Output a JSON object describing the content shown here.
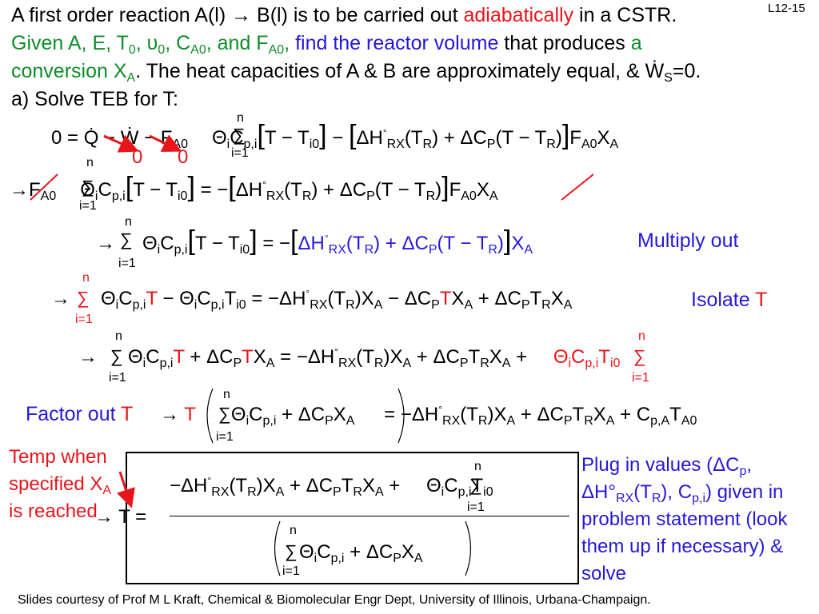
{
  "header": {
    "line1_a": "A first order reaction A(l) → B(l) is to be carried out ",
    "line1_red": "adiabatically",
    "line1_b": " in a CSTR.",
    "slide_id": "L12-15",
    "line2_a": "Given A, E, T",
    "line2_a_sub": "0",
    "line2_b": ", υ",
    "line2_b_sub": "0",
    "line2_c": ", C",
    "line2_c_sub": "A0",
    "line2_d": ", and F",
    "line2_d_sub": "A0",
    "line2_e": ", ",
    "line2_blue": "find the reactor volume",
    "line2_f": " that produces ",
    "line2_g": "a",
    "line3_a": "conversion X",
    "line3_a_sub": "A",
    "line3_b": ".  The heat capacities of A & B are approximately equal, & Ẇ",
    "line3_b_sub": "S",
    "line3_c": "=0.",
    "line4": "a) Solve TEB for T:"
  },
  "equations": {
    "eq1_lhs": "0 = Q̇ − Ẇ",
    "eq1_mid": " − F",
    "eq1_fa0": "A0",
    "eq1_term": "Θ",
    "eq1_i": "i",
    "eq1_cp": "C",
    "eq1_cp_sub": "p,i",
    "eq1_br": "T − T",
    "eq1_br_sub": "i0",
    "eq1_mid2": " − ",
    "eq1_dh": "ΔH",
    "eq1_deg": "°",
    "eq1_rx": "RX",
    "eq1_tr": "(T",
    "eq1_tr_sub": "R",
    "eq1_tr_end": ") + ΔC",
    "eq1_p": "P",
    "eq1_paren": "(T − T",
    "eq1_paren_sub": "R",
    "eq1_close": ")",
    "eq1_fa": "F",
    "eq1_fa_sub": "A0",
    "eq1_x": "X",
    "eq1_x_sub": "A",
    "zero_left": "0",
    "zero_right": "0",
    "sum_top": "n",
    "sum_bottom": "i=1",
    "step_multiply": "Multiply out",
    "step_isolate": "Isolate ",
    "step_isolate_t": "T",
    "step_factor": "Factor out ",
    "step_factor_t": "T",
    "result_note": "Temp when specified X",
    "result_note_sub": "A",
    "result_note_end": " is reached",
    "plug_in": "Plug in values (ΔC",
    "plug_in_sub": "p",
    "plug_in_b": ", ΔH°",
    "plug_in_b_sub": "RX",
    "plug_in_c": "(T",
    "plug_in_c_sub": "R",
    "plug_in_d": "), C",
    "plug_in_d_sub": "p,i",
    "plug_in_e": ") given in problem statement (look them up if necessary) & solve"
  },
  "footer": "Slides courtesy of Prof M L Kraft, Chemical & Biomolecular Engr Dept, University of Illinois, Urbana-Champaign.",
  "colors": {
    "red": "#e8151b",
    "green": "#0e8e26",
    "blue": "#2518d9"
  }
}
